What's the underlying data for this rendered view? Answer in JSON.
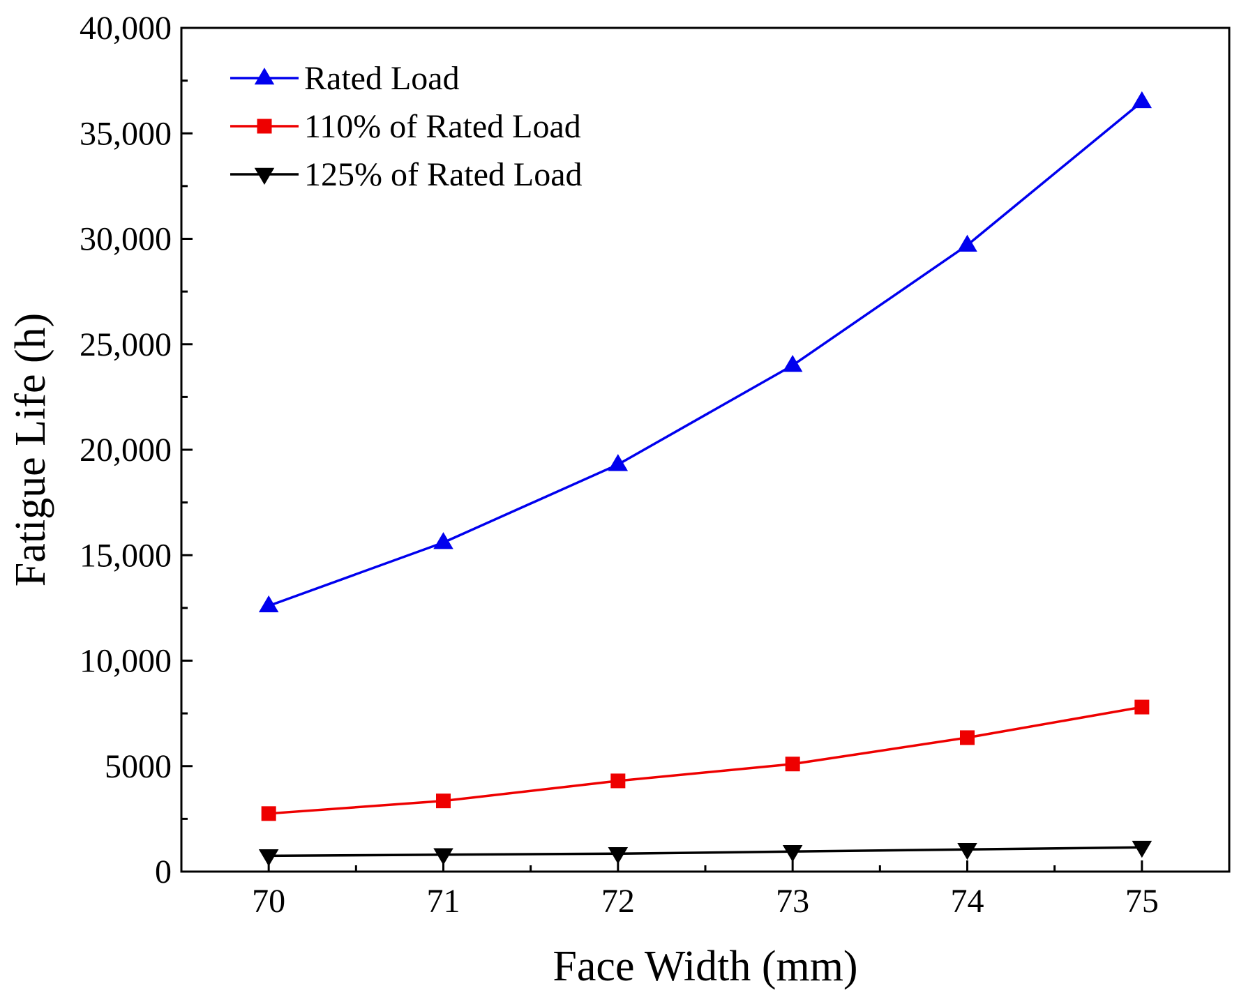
{
  "chart_data": {
    "type": "line",
    "title": "",
    "xlabel": "Face Width (mm)",
    "ylabel": "Fatigue Life (h)",
    "x": [
      70,
      71,
      72,
      73,
      74,
      75
    ],
    "xticks": [
      70,
      71,
      72,
      73,
      74,
      75
    ],
    "xtick_labels": [
      "70",
      "71",
      "72",
      "73",
      "74",
      "75"
    ],
    "xlim": [
      69.5,
      75.5
    ],
    "ylim": [
      0,
      40000
    ],
    "yticks": [
      0,
      5000,
      10000,
      15000,
      20000,
      25000,
      30000,
      35000,
      40000
    ],
    "ytick_labels": [
      "0",
      "5000",
      "10,000",
      "15,000",
      "20,000",
      "25,000",
      "30,000",
      "35,000",
      "40,000"
    ],
    "grid": false,
    "legend_position": "top-left",
    "series": [
      {
        "name": "Rated Load",
        "color": "#0000ee",
        "marker": "triangle-up",
        "values": [
          12600,
          15600,
          19300,
          24000,
          29700,
          36500
        ]
      },
      {
        "name": "110% of  Rated Load",
        "color": "#ee0000",
        "marker": "square",
        "values": [
          2750,
          3350,
          4300,
          5100,
          6350,
          7800
        ]
      },
      {
        "name": "125% of  Rated Load",
        "color": "#000000",
        "marker": "triangle-down",
        "values": [
          750,
          800,
          850,
          950,
          1050,
          1150
        ]
      }
    ]
  }
}
